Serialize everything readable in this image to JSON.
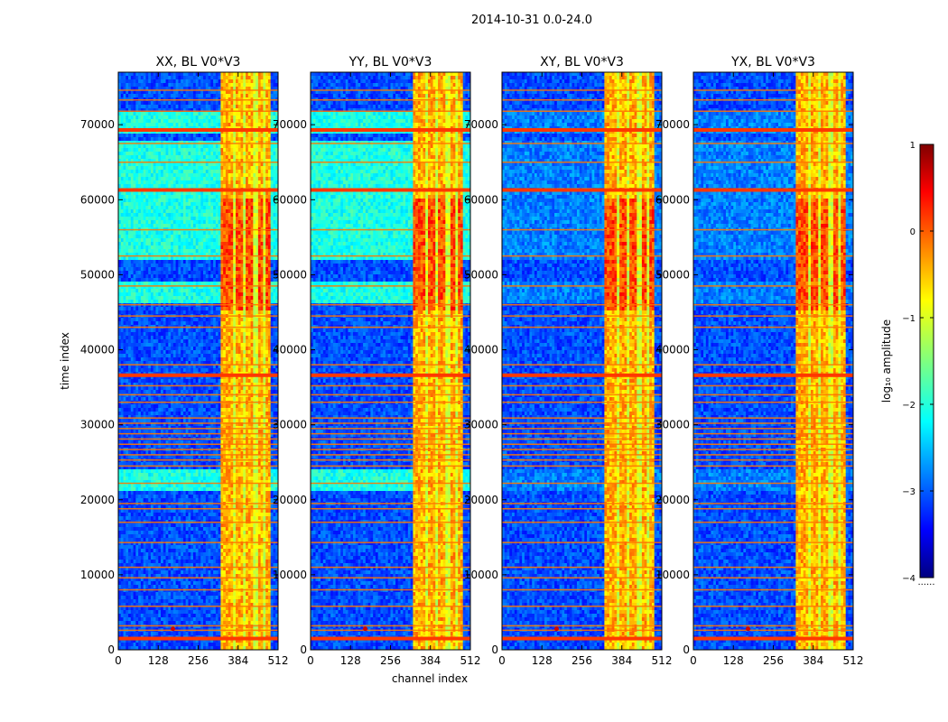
{
  "chart_data": {
    "type": "heatmap",
    "title": "2014-10-31 0.0-24.0",
    "xlabel": "channel index",
    "ylabel": "time index",
    "xlim": [
      0,
      512
    ],
    "ylim": [
      0,
      77000
    ],
    "x_ticks": [
      0,
      128,
      256,
      384,
      512
    ],
    "y_ticks": [
      0,
      10000,
      20000,
      30000,
      40000,
      50000,
      60000,
      70000
    ],
    "panels": [
      {
        "title": "XX, BL V0*V3",
        "pol": "XX",
        "baseline": "V0*V3"
      },
      {
        "title": "YY, BL V0*V3",
        "pol": "YY",
        "baseline": "V0*V3"
      },
      {
        "title": "XY, BL V0*V3",
        "pol": "XY",
        "baseline": "V0*V3"
      },
      {
        "title": "YX, BL V0*V3",
        "pol": "YX",
        "baseline": "V0*V3"
      }
    ],
    "colorbar": {
      "label": "log₁₀ amplitude",
      "range": [
        -4,
        1
      ],
      "ticks": [
        1,
        0,
        -1,
        -2,
        -3,
        -4
      ],
      "tick_labels": [
        "1",
        "0",
        "−1",
        "−2",
        "−3",
        "−4"
      ],
      "colormap": "jet",
      "footnote": "......"
    },
    "background_level": -3.0,
    "features": {
      "bright_channel_band": [
        330,
        490
      ],
      "hot_subbands": [
        [
          330,
          365
        ],
        [
          375,
          400
        ],
        [
          410,
          430
        ],
        [
          445,
          465
        ],
        [
          470,
          490
        ]
      ],
      "rfi_rows": [
        1600,
        2600,
        3200,
        5800,
        8000,
        9600,
        11000,
        14300,
        17000,
        18800,
        19500,
        22200,
        24500,
        25300,
        26000,
        26700,
        27400,
        28100,
        28800,
        29500,
        30200,
        30900,
        33000,
        34000,
        35200,
        36600,
        38000,
        43000,
        44500,
        46000,
        48500,
        52500,
        56000,
        61300,
        65000,
        67500,
        69300,
        71800,
        73300,
        74600
      ],
      "strong_rfi_rows": [
        1500,
        36600,
        61300,
        69300
      ],
      "elevated_time_bands": [
        [
          21000,
          24000
        ],
        [
          46000,
          49000
        ],
        [
          52000,
          68000
        ],
        [
          69000,
          71500
        ]
      ],
      "bright_time_bands": [
        [
          45000,
          60000
        ]
      ],
      "point_source": {
        "channel": 175,
        "time": 2800
      }
    }
  }
}
